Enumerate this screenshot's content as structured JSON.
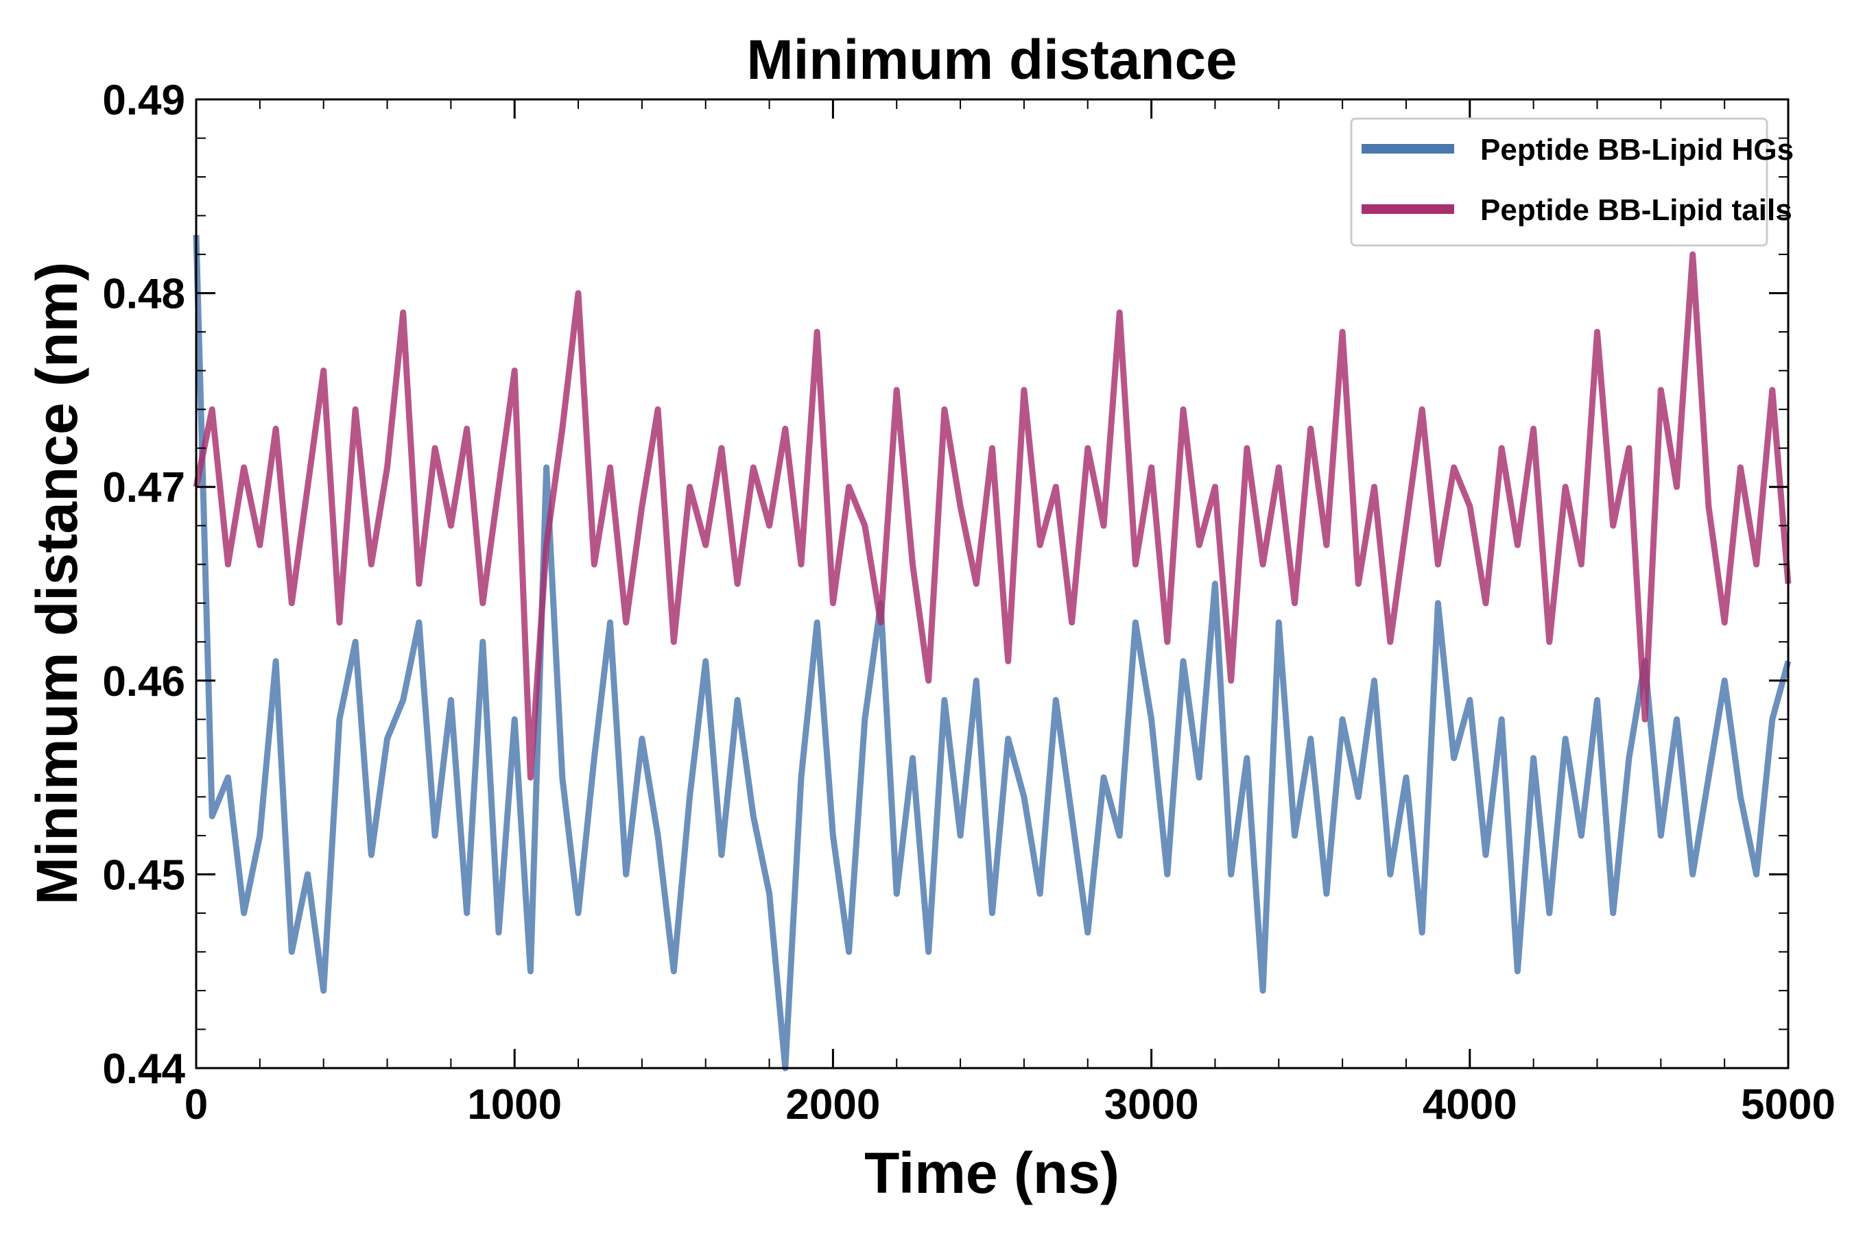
{
  "chart_data": {
    "type": "line",
    "title": "Minimum distance",
    "xlabel": "Time (ns)",
    "ylabel": "Minimum distance (nm)",
    "xlim": [
      0,
      5000
    ],
    "ylim": [
      0.44,
      0.49
    ],
    "x_step": 50,
    "xticks": [
      "0",
      "1000",
      "2000",
      "3000",
      "4000",
      "5000"
    ],
    "yticks": [
      "0.44",
      "0.45",
      "0.46",
      "0.47",
      "0.48",
      "0.49"
    ],
    "x_minor_step": 200,
    "y_minor_step": 0.002,
    "grid": false,
    "legend_position": "top-right",
    "series": [
      {
        "name": "Peptide BB-Lipid HGs",
        "color": "#4a78ad",
        "values": [
          0.483,
          0.453,
          0.455,
          0.448,
          0.452,
          0.461,
          0.446,
          0.45,
          0.444,
          0.458,
          0.462,
          0.451,
          0.457,
          0.459,
          0.463,
          0.452,
          0.459,
          0.448,
          0.462,
          0.447,
          0.458,
          0.445,
          0.471,
          0.455,
          0.448,
          0.456,
          0.463,
          0.45,
          0.457,
          0.452,
          0.445,
          0.454,
          0.461,
          0.451,
          0.459,
          0.453,
          0.449,
          0.44,
          0.455,
          0.463,
          0.452,
          0.446,
          0.458,
          0.464,
          0.449,
          0.456,
          0.446,
          0.459,
          0.452,
          0.46,
          0.448,
          0.457,
          0.454,
          0.449,
          0.459,
          0.453,
          0.447,
          0.455,
          0.452,
          0.463,
          0.458,
          0.45,
          0.461,
          0.455,
          0.465,
          0.45,
          0.456,
          0.444,
          0.463,
          0.452,
          0.457,
          0.449,
          0.458,
          0.454,
          0.46,
          0.45,
          0.455,
          0.447,
          0.464,
          0.456,
          0.459,
          0.451,
          0.458,
          0.445,
          0.456,
          0.448,
          0.457,
          0.452,
          0.459,
          0.448,
          0.456,
          0.461,
          0.452,
          0.458,
          0.45,
          0.455,
          0.46,
          0.454,
          0.45,
          0.458,
          0.461
        ]
      },
      {
        "name": "Peptide BB-Lipid tails",
        "color": "#a8306e",
        "values": [
          0.47,
          0.474,
          0.466,
          0.471,
          0.467,
          0.473,
          0.464,
          0.47,
          0.476,
          0.463,
          0.474,
          0.466,
          0.471,
          0.479,
          0.465,
          0.472,
          0.468,
          0.473,
          0.464,
          0.47,
          0.476,
          0.455,
          0.467,
          0.473,
          0.48,
          0.466,
          0.471,
          0.463,
          0.469,
          0.474,
          0.462,
          0.47,
          0.467,
          0.472,
          0.465,
          0.471,
          0.468,
          0.473,
          0.466,
          0.478,
          0.464,
          0.47,
          0.468,
          0.463,
          0.475,
          0.466,
          0.46,
          0.474,
          0.469,
          0.465,
          0.472,
          0.461,
          0.475,
          0.467,
          0.47,
          0.463,
          0.472,
          0.468,
          0.479,
          0.466,
          0.471,
          0.462,
          0.474,
          0.467,
          0.47,
          0.46,
          0.472,
          0.466,
          0.471,
          0.464,
          0.473,
          0.467,
          0.478,
          0.465,
          0.47,
          0.462,
          0.468,
          0.474,
          0.466,
          0.471,
          0.469,
          0.464,
          0.472,
          0.467,
          0.473,
          0.462,
          0.47,
          0.466,
          0.478,
          0.468,
          0.472,
          0.458,
          0.475,
          0.47,
          0.482,
          0.469,
          0.463,
          0.471,
          0.466,
          0.475,
          0.465
        ]
      }
    ]
  }
}
